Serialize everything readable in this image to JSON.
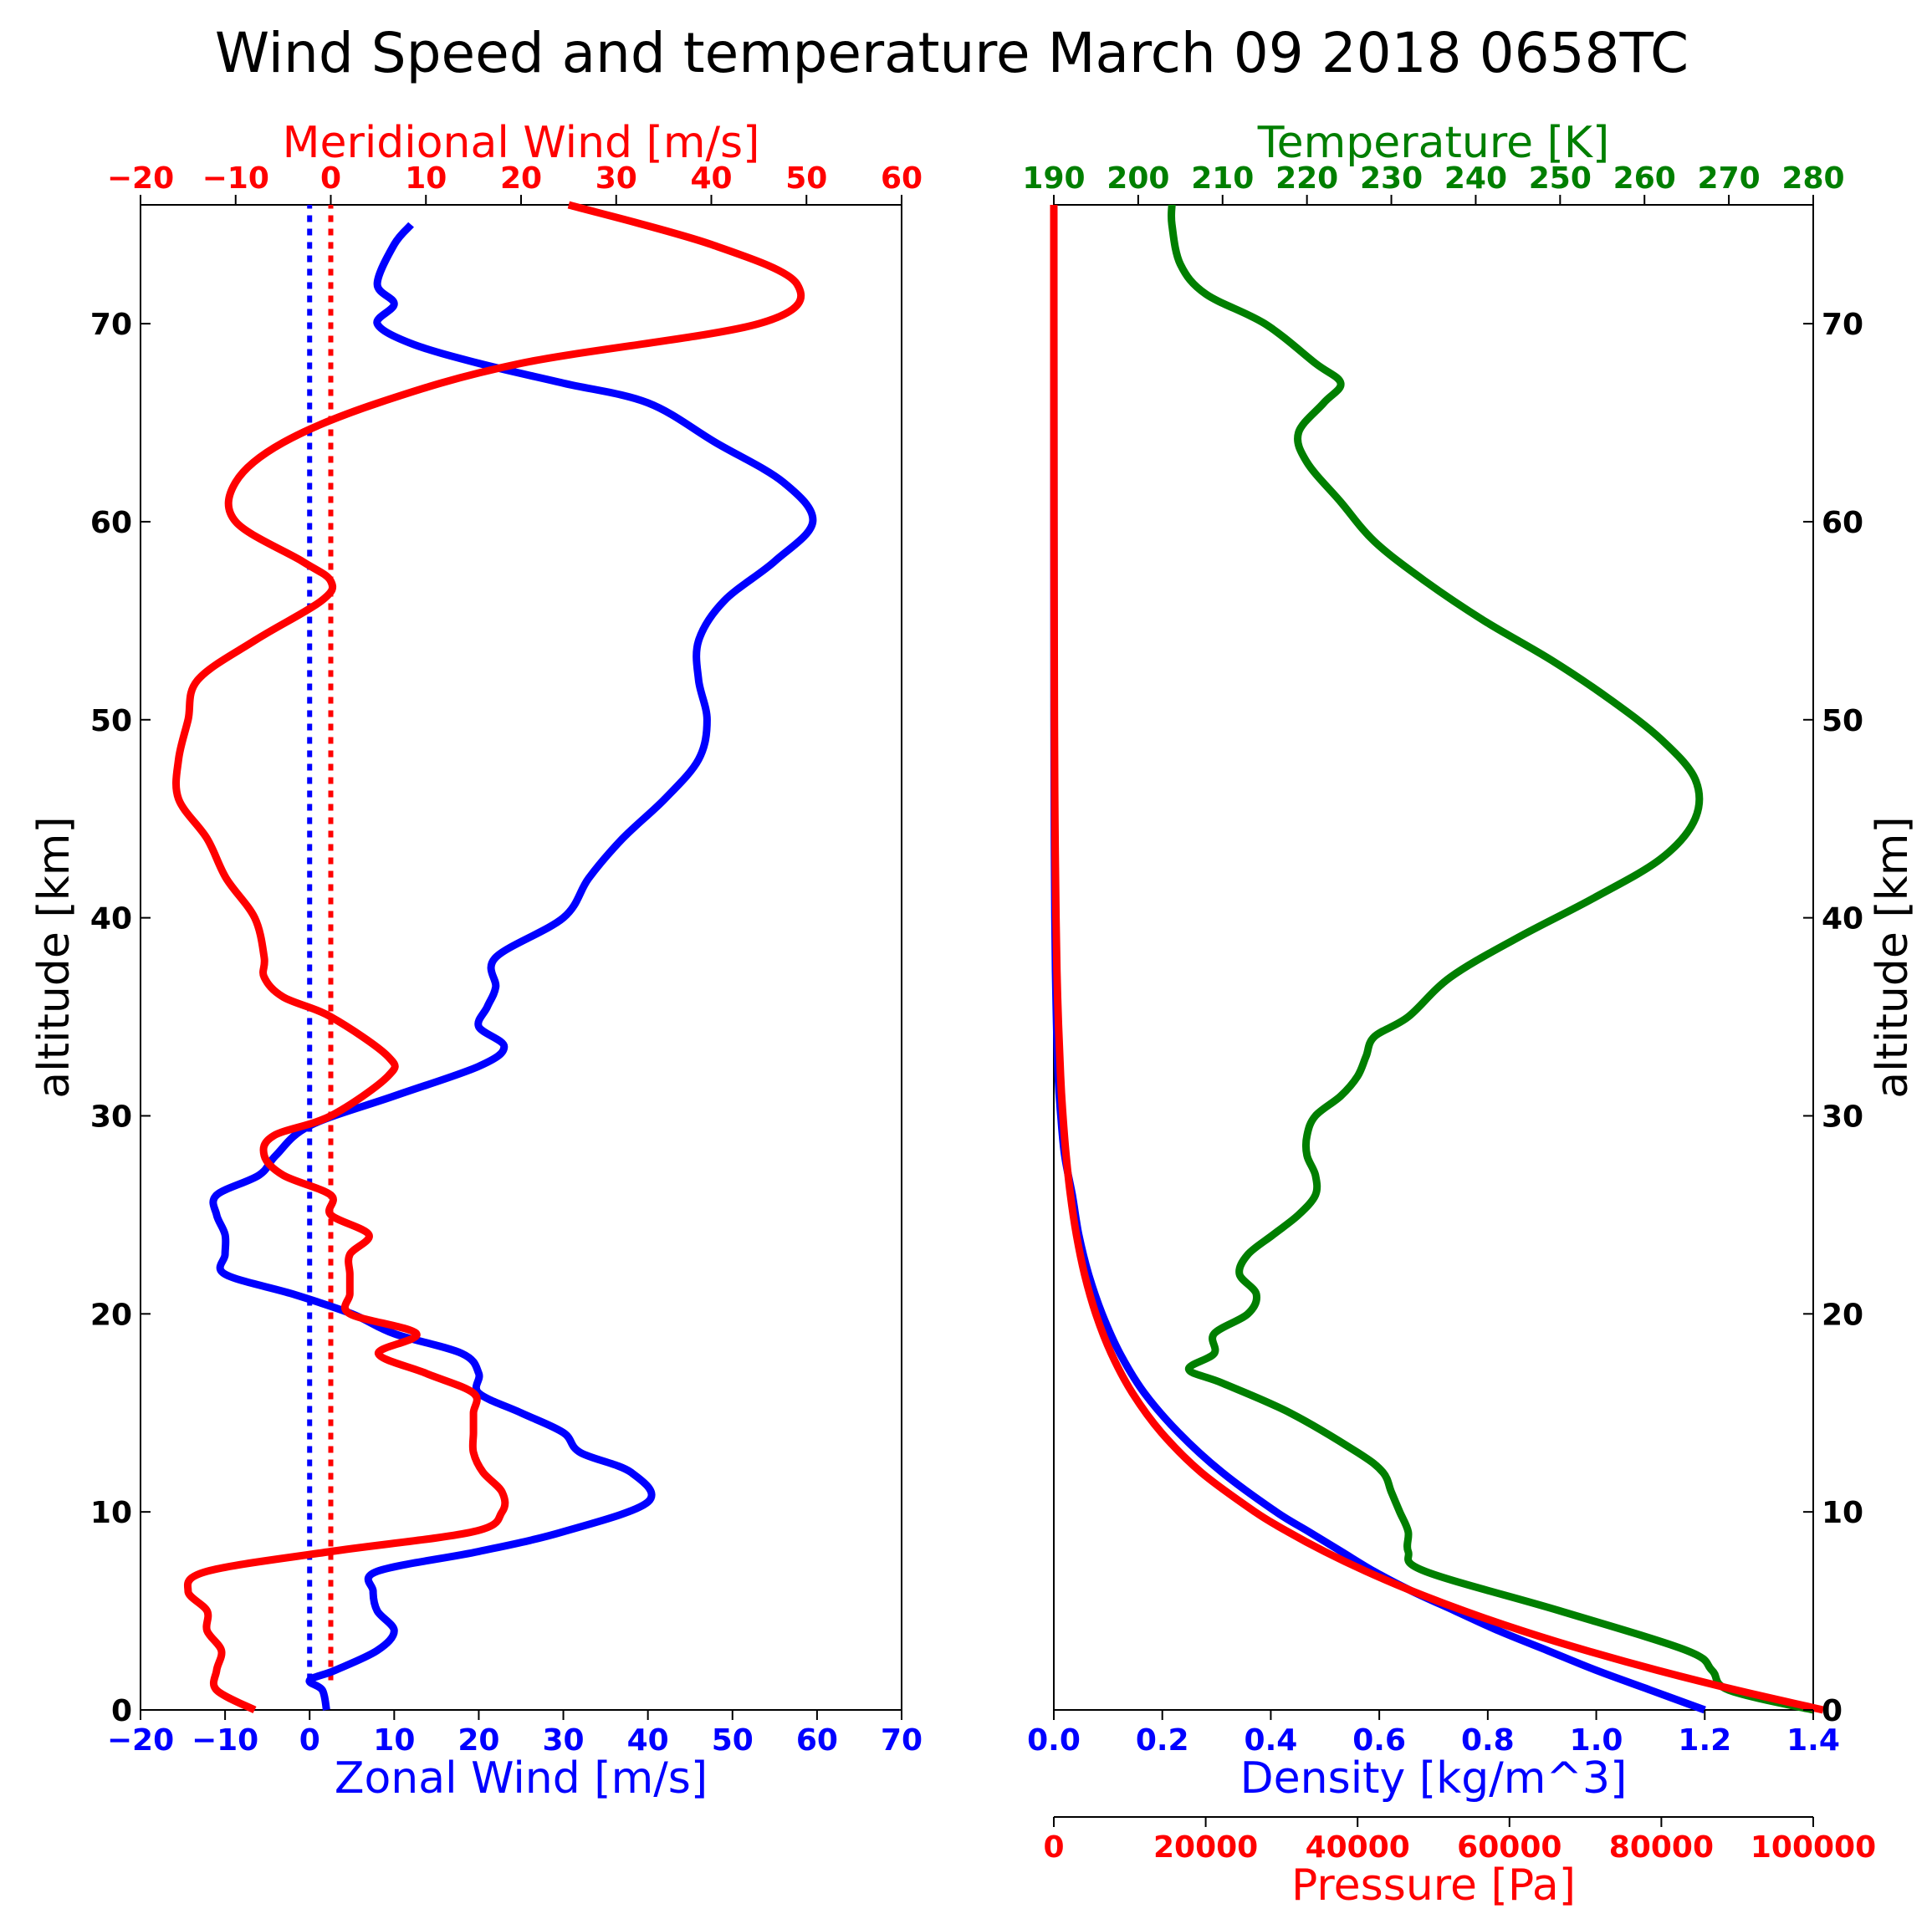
{
  "chart_data": [
    {
      "type": "line",
      "title": "Wind Speed and temperature March 09 2018 0658TC",
      "ylabel": "altitude [km]",
      "ylim": [
        0,
        76
      ],
      "yticks": [
        "0",
        "10",
        "20",
        "30",
        "40",
        "50",
        "60",
        "70"
      ],
      "axes": {
        "bottom": {
          "label": "Zonal Wind [m/s]",
          "color": "#0000ff",
          "lim": [
            -20,
            70
          ],
          "ticks": [
            "−20",
            "−10",
            "0",
            "10",
            "20",
            "30",
            "40",
            "50",
            "60",
            "70"
          ]
        },
        "top": {
          "label": "Meridional Wind [m/s]",
          "color": "#ff0000",
          "lim": [
            -20,
            60
          ],
          "ticks": [
            "−20",
            "−10",
            "0",
            "10",
            "20",
            "30",
            "40",
            "50",
            "60"
          ]
        }
      },
      "series": [
        {
          "name": "Zonal Wind",
          "axis": "bottom",
          "color": "#0000ff",
          "points": [
            [
              2,
              0
            ],
            [
              1.5,
              1
            ],
            [
              0,
              1.5
            ],
            [
              3,
              2
            ],
            [
              8,
              3
            ],
            [
              10,
              4
            ],
            [
              8,
              5
            ],
            [
              7.5,
              6
            ],
            [
              8,
              7
            ],
            [
              20,
              8
            ],
            [
              30,
              9
            ],
            [
              40,
              10.5
            ],
            [
              38,
              12
            ],
            [
              32,
              13
            ],
            [
              30,
              14
            ],
            [
              25,
              15
            ],
            [
              20,
              16
            ],
            [
              20,
              17
            ],
            [
              18,
              18
            ],
            [
              10,
              19
            ],
            [
              5,
              20
            ],
            [
              -2,
              21
            ],
            [
              -10,
              22
            ],
            [
              -10,
              23
            ],
            [
              -10,
              24
            ],
            [
              -11,
              25
            ],
            [
              -11,
              26
            ],
            [
              -6,
              27
            ],
            [
              -4,
              28
            ],
            [
              0,
              29.5
            ],
            [
              10,
              31
            ],
            [
              20,
              32.5
            ],
            [
              23,
              33.5
            ],
            [
              20,
              34.5
            ],
            [
              21,
              35.5
            ],
            [
              22,
              36.5
            ],
            [
              22,
              38
            ],
            [
              30,
              40
            ],
            [
              33,
              42
            ],
            [
              37,
              44
            ],
            [
              42,
              46
            ],
            [
              46,
              48
            ],
            [
              47,
              50
            ],
            [
              46,
              52
            ],
            [
              46,
              54
            ],
            [
              49,
              56
            ],
            [
              55,
              58
            ],
            [
              59.5,
              60
            ],
            [
              56,
              62
            ],
            [
              48,
              64
            ],
            [
              40,
              66
            ],
            [
              30,
              67
            ],
            [
              20,
              68
            ],
            [
              12,
              69
            ],
            [
              8,
              70
            ],
            [
              10,
              71
            ],
            [
              8,
              72
            ],
            [
              10,
              74
            ],
            [
              12,
              75
            ]
          ]
        },
        {
          "name": "Meridional Wind",
          "axis": "top",
          "color": "#ff0000",
          "points": [
            [
              -8,
              0
            ],
            [
              -12,
              1
            ],
            [
              -12,
              2
            ],
            [
              -11.5,
              3
            ],
            [
              -13,
              4
            ],
            [
              -13,
              5
            ],
            [
              -15,
              6
            ],
            [
              -13,
              7
            ],
            [
              0,
              8
            ],
            [
              15,
              9
            ],
            [
              18,
              10
            ],
            [
              18,
              11
            ],
            [
              16,
              12
            ],
            [
              15,
              13
            ],
            [
              15,
              14
            ],
            [
              15,
              15
            ],
            [
              15,
              16
            ],
            [
              10,
              17
            ],
            [
              5,
              18
            ],
            [
              9,
              19
            ],
            [
              2,
              20
            ],
            [
              2,
              21
            ],
            [
              2,
              22
            ],
            [
              2,
              23
            ],
            [
              4,
              24
            ],
            [
              0,
              25
            ],
            [
              0,
              26
            ],
            [
              -5,
              27
            ],
            [
              -7,
              28
            ],
            [
              -6,
              29
            ],
            [
              0,
              30
            ],
            [
              6,
              32
            ],
            [
              6,
              33
            ],
            [
              0,
              35
            ],
            [
              -5,
              36
            ],
            [
              -7,
              37
            ],
            [
              -7,
              38
            ],
            [
              -8,
              40
            ],
            [
              -11,
              42
            ],
            [
              -13,
              44
            ],
            [
              -16,
              46
            ],
            [
              -16,
              48
            ],
            [
              -15,
              50
            ],
            [
              -14,
              52
            ],
            [
              -8,
              54
            ],
            [
              -1,
              56
            ],
            [
              0,
              57
            ],
            [
              -3,
              58
            ],
            [
              -10,
              60
            ],
            [
              -10,
              62
            ],
            [
              -5,
              64
            ],
            [
              5,
              66
            ],
            [
              20,
              68
            ],
            [
              45,
              70
            ],
            [
              49,
              72
            ],
            [
              40,
              74
            ],
            [
              25,
              76
            ]
          ]
        }
      ],
      "reference_lines": [
        {
          "name": "zonal zero",
          "axis": "bottom",
          "value": 0,
          "style": "dotted",
          "color": "#0000ff"
        },
        {
          "name": "meridional zero",
          "axis": "top",
          "value": 0,
          "style": "dotted",
          "color": "#ff0000"
        }
      ]
    },
    {
      "type": "line",
      "ylabel": "altitude [km]",
      "ylim": [
        0,
        76
      ],
      "yticks": [
        "0",
        "10",
        "20",
        "30",
        "40",
        "50",
        "60",
        "70"
      ],
      "axes": {
        "top": {
          "label": "Temperature [K]",
          "color": "#007f00",
          "lim": [
            190,
            280
          ],
          "ticks": [
            "190",
            "200",
            "210",
            "220",
            "230",
            "240",
            "250",
            "260",
            "270",
            "280"
          ]
        },
        "bottom": {
          "label": "Density [kg/m^3]",
          "color": "#0000ff",
          "lim": [
            0,
            1.4
          ],
          "ticks": [
            "0.0",
            "0.2",
            "0.4",
            "0.6",
            "0.8",
            "1.0",
            "1.2",
            "1.4"
          ]
        },
        "bottom2": {
          "label": "Pressure [Pa]",
          "color": "#ff0000",
          "lim": [
            0,
            100000
          ],
          "ticks": [
            "0",
            "20000",
            "40000",
            "60000",
            "80000",
            "100000"
          ]
        }
      },
      "series": [
        {
          "name": "Temperature",
          "axis": "top",
          "color": "#007f00",
          "points": [
            [
              280,
              0
            ],
            [
              270,
              1
            ],
            [
              268,
              2
            ],
            [
              265,
              3
            ],
            [
              250,
              5
            ],
            [
              234,
              7
            ],
            [
              232,
              8
            ],
            [
              232,
              9
            ],
            [
              231,
              10
            ],
            [
              230,
              11
            ],
            [
              229,
              12
            ],
            [
              226,
              13
            ],
            [
              218,
              15
            ],
            [
              210,
              16.5
            ],
            [
              206,
              17.2
            ],
            [
              209,
              18
            ],
            [
              209,
              19
            ],
            [
              213,
              20
            ],
            [
              214,
              21
            ],
            [
              212,
              22
            ],
            [
              213,
              23
            ],
            [
              216,
              24
            ],
            [
              219,
              25
            ],
            [
              221,
              26
            ],
            [
              221,
              27
            ],
            [
              220,
              28
            ],
            [
              220,
              29
            ],
            [
              221,
              30
            ],
            [
              224,
              31
            ],
            [
              226,
              32
            ],
            [
              227,
              33
            ],
            [
              228,
              34
            ],
            [
              232,
              35
            ],
            [
              237,
              37
            ],
            [
              245,
              39
            ],
            [
              254,
              41
            ],
            [
              262,
              43
            ],
            [
              266,
              45
            ],
            [
              266,
              47
            ],
            [
              262,
              49
            ],
            [
              256,
              51
            ],
            [
              249,
              53
            ],
            [
              241,
              55
            ],
            [
              234,
              57
            ],
            [
              228,
              59
            ],
            [
              224,
              61
            ],
            [
              220,
              63
            ],
            [
              219,
              64.5
            ],
            [
              222,
              66
            ],
            [
              224,
              67
            ],
            [
              221,
              68
            ],
            [
              215,
              70
            ],
            [
              208,
              71.5
            ],
            [
              205,
              73
            ],
            [
              204,
              75
            ],
            [
              204,
              76
            ]
          ]
        },
        {
          "name": "Density",
          "axis": "bottom",
          "color": "#0000ff",
          "points": [
            [
              1.2,
              0
            ],
            [
              1.1,
              1
            ],
            [
              1.0,
              2
            ],
            [
              0.91,
              3
            ],
            [
              0.82,
              4
            ],
            [
              0.74,
              5
            ],
            [
              0.66,
              6
            ],
            [
              0.59,
              7
            ],
            [
              0.53,
              8
            ],
            [
              0.47,
              9
            ],
            [
              0.41,
              10
            ],
            [
              0.31,
              12
            ],
            [
              0.23,
              14
            ],
            [
              0.167,
              16
            ],
            [
              0.122,
              18
            ],
            [
              0.089,
              20
            ],
            [
              0.064,
              22
            ],
            [
              0.046,
              24
            ],
            [
              0.034,
              26
            ],
            [
              0.02,
              28
            ],
            [
              0.013,
              30
            ],
            [
              0.008,
              32
            ],
            [
              0.004,
              36
            ],
            [
              0.002,
              40
            ],
            [
              0.001,
              45
            ],
            [
              0.0005,
              50
            ],
            [
              0.0002,
              60
            ],
            [
              0,
              76
            ]
          ]
        },
        {
          "name": "Pressure",
          "axis": "bottom2",
          "color": "#ff0000",
          "points": [
            [
              101325,
              0
            ],
            [
              89876,
              1
            ],
            [
              79501,
              2
            ],
            [
              70121,
              3
            ],
            [
              61660,
              4
            ],
            [
              54048,
              5
            ],
            [
              47217,
              6
            ],
            [
              41105,
              7
            ],
            [
              35651,
              8
            ],
            [
              30800,
              9
            ],
            [
              26500,
              10
            ],
            [
              19399,
              12
            ],
            [
              14170,
              14
            ],
            [
              10353,
              16
            ],
            [
              7565,
              18
            ],
            [
              5529,
              20
            ],
            [
              4047,
              22
            ],
            [
              2972,
              24
            ],
            [
              2188,
              26
            ],
            [
              1616,
              28
            ],
            [
              1197,
              30
            ],
            [
              889,
              32
            ],
            [
              499,
              36
            ],
            [
              287,
              40
            ],
            [
              141,
              45
            ],
            [
              80,
              50
            ],
            [
              22,
              60
            ],
            [
              5,
              70
            ],
            [
              0,
              76
            ]
          ]
        }
      ]
    }
  ]
}
